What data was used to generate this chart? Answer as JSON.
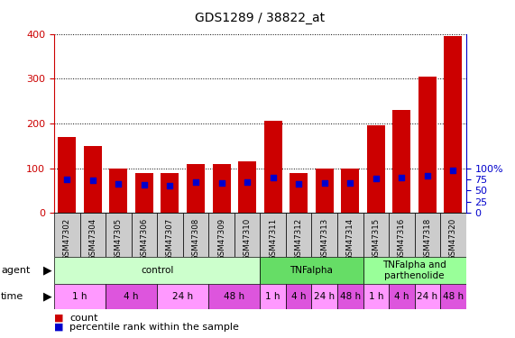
{
  "title": "GDS1289 / 38822_at",
  "samples": [
    "GSM47302",
    "GSM47304",
    "GSM47305",
    "GSM47306",
    "GSM47307",
    "GSM47308",
    "GSM47309",
    "GSM47310",
    "GSM47311",
    "GSM47312",
    "GSM47313",
    "GSM47314",
    "GSM47315",
    "GSM47316",
    "GSM47318",
    "GSM47320"
  ],
  "counts": [
    170,
    150,
    100,
    90,
    90,
    110,
    110,
    115,
    205,
    90,
    100,
    100,
    195,
    230,
    305,
    395
  ],
  "percentiles": [
    75,
    72,
    65,
    62,
    61,
    68,
    66,
    68,
    79,
    65,
    66,
    66,
    77,
    79,
    83,
    95
  ],
  "bar_color": "#cc0000",
  "dot_color": "#0000cc",
  "ylim_left": [
    0,
    400
  ],
  "ylim_right": [
    0,
    100
  ],
  "yticks_left": [
    0,
    100,
    200,
    300,
    400
  ],
  "yticks_right": [
    0,
    25,
    50,
    75,
    100
  ],
  "ytick_right_labels": [
    "0",
    "25",
    "50",
    "75",
    "100%"
  ],
  "agent_groups": [
    {
      "label": "control",
      "start": 0,
      "end": 8,
      "color": "#ccffcc"
    },
    {
      "label": "TNFalpha",
      "start": 8,
      "end": 12,
      "color": "#66dd66"
    },
    {
      "label": "TNFalpha and\nparthenolide",
      "start": 12,
      "end": 16,
      "color": "#99ff99"
    }
  ],
  "time_groups": [
    {
      "label": "1 h",
      "start": 0,
      "end": 2,
      "color": "#ff99ff"
    },
    {
      "label": "4 h",
      "start": 2,
      "end": 4,
      "color": "#dd55dd"
    },
    {
      "label": "24 h",
      "start": 4,
      "end": 6,
      "color": "#ff99ff"
    },
    {
      "label": "48 h",
      "start": 6,
      "end": 8,
      "color": "#dd55dd"
    },
    {
      "label": "1 h",
      "start": 8,
      "end": 9,
      "color": "#ff99ff"
    },
    {
      "label": "4 h",
      "start": 9,
      "end": 10,
      "color": "#dd55dd"
    },
    {
      "label": "24 h",
      "start": 10,
      "end": 11,
      "color": "#ff99ff"
    },
    {
      "label": "48 h",
      "start": 11,
      "end": 12,
      "color": "#dd55dd"
    },
    {
      "label": "1 h",
      "start": 12,
      "end": 13,
      "color": "#ff99ff"
    },
    {
      "label": "4 h",
      "start": 13,
      "end": 14,
      "color": "#dd55dd"
    },
    {
      "label": "24 h",
      "start": 14,
      "end": 15,
      "color": "#ff99ff"
    },
    {
      "label": "48 h",
      "start": 15,
      "end": 16,
      "color": "#dd55dd"
    }
  ],
  "xlabel_bg": "#cccccc",
  "label_fontsize": 7,
  "tick_fontsize": 8,
  "title_fontsize": 10
}
